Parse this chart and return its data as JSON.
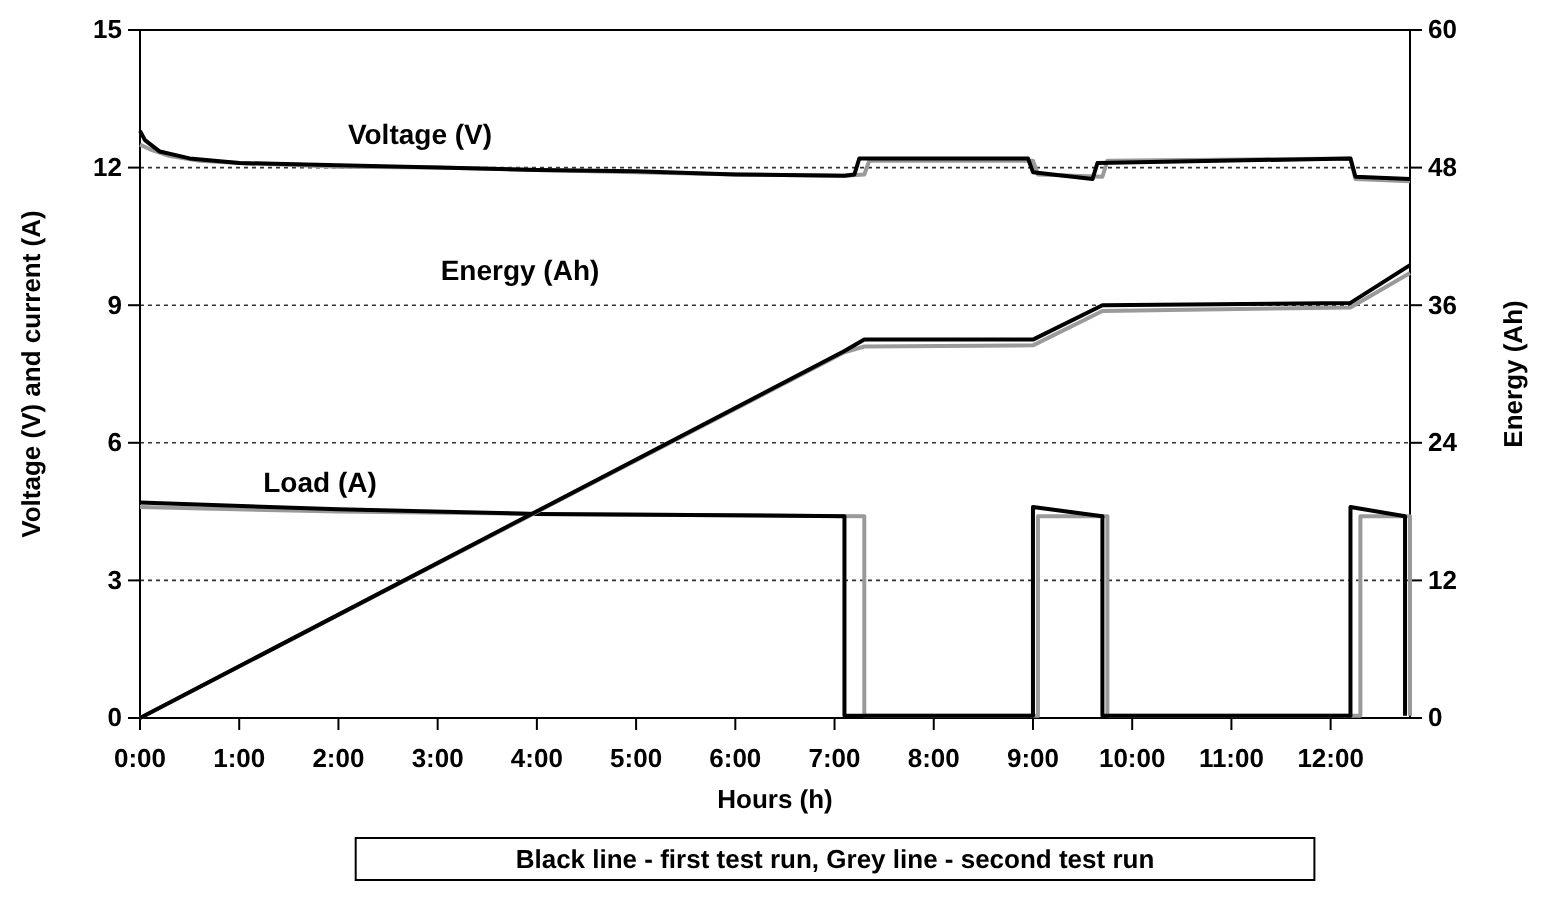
{
  "chart_data": {
    "type": "line",
    "xlabel": "Hours (h)",
    "ylabel": "Voltage (V) and current (A)",
    "y2label": "Energy (Ah)",
    "xlim": [
      0,
      12.8
    ],
    "xticks": [
      {
        "value": 0,
        "label": "0:00"
      },
      {
        "value": 1,
        "label": "1:00"
      },
      {
        "value": 2,
        "label": "2:00"
      },
      {
        "value": 3,
        "label": "3:00"
      },
      {
        "value": 4,
        "label": "4:00"
      },
      {
        "value": 5,
        "label": "5:00"
      },
      {
        "value": 6,
        "label": "6:00"
      },
      {
        "value": 7,
        "label": "7:00"
      },
      {
        "value": 8,
        "label": "8:00"
      },
      {
        "value": 9,
        "label": "9:00"
      },
      {
        "value": 10,
        "label": "10:00"
      },
      {
        "value": 11,
        "label": "11:00"
      },
      {
        "value": 12,
        "label": "12:00"
      }
    ],
    "ylim": [
      0,
      15
    ],
    "yticks": [
      0,
      3,
      6,
      9,
      12,
      15
    ],
    "y2lim": [
      0,
      60
    ],
    "y2ticks": [
      0,
      12,
      24,
      36,
      48,
      60
    ],
    "grid": "y",
    "line_style": "solid",
    "marker": "none",
    "series": [
      {
        "color": "#9a9a9a",
        "axis": "y",
        "x": [
          0,
          0.1,
          0.3,
          0.6,
          1,
          2,
          3,
          4,
          5,
          6,
          7.1,
          7.3,
          7.35,
          9.0,
          9.05,
          9.7,
          9.75,
          12.2,
          12.25,
          12.8
        ],
        "values": [
          12.5,
          12.4,
          12.25,
          12.15,
          12.1,
          12.02,
          12.0,
          11.95,
          11.9,
          11.85,
          11.82,
          11.85,
          12.15,
          12.15,
          11.85,
          11.8,
          12.15,
          12.2,
          11.75,
          11.7
        ]
      },
      {
        "color": "#000000",
        "axis": "y",
        "x": [
          0,
          0.05,
          0.2,
          0.5,
          1,
          2,
          3,
          4,
          5,
          6,
          7.1,
          7.2,
          7.25,
          8.95,
          9.0,
          9.6,
          9.65,
          12.2,
          12.25,
          12.8
        ],
        "values": [
          12.8,
          12.6,
          12.35,
          12.2,
          12.1,
          12.05,
          12.0,
          11.95,
          11.92,
          11.85,
          11.82,
          11.85,
          12.2,
          12.2,
          11.9,
          11.75,
          12.1,
          12.2,
          11.8,
          11.75
        ]
      },
      {
        "color": "#9a9a9a",
        "axis": "y",
        "x": [
          0,
          2,
          4,
          7.3,
          7.3,
          9.05,
          9.05,
          9.75,
          9.75,
          12.3,
          12.3,
          12.8,
          12.8
        ],
        "values": [
          4.6,
          4.5,
          4.45,
          4.4,
          0.05,
          0.05,
          4.4,
          4.4,
          0.05,
          0.05,
          4.4,
          4.4,
          0.05
        ]
      },
      {
        "color": "#000000",
        "axis": "y",
        "x": [
          0,
          2,
          4,
          7.1,
          7.1,
          9.0,
          9.0,
          9.7,
          9.7,
          12.2,
          12.2,
          12.75,
          12.75
        ],
        "values": [
          4.7,
          4.55,
          4.45,
          4.4,
          0.05,
          0.05,
          4.6,
          4.4,
          0.05,
          0.05,
          4.6,
          4.4,
          0.05
        ]
      },
      {
        "color": "#9a9a9a",
        "axis": "y2",
        "x": [
          0,
          7.1,
          7.3,
          9.0,
          9.7,
          12.2,
          12.8
        ],
        "values": [
          0,
          31.9,
          32.4,
          32.5,
          35.5,
          35.8,
          38.8
        ]
      },
      {
        "color": "#000000",
        "axis": "y2",
        "x": [
          0,
          7.1,
          7.3,
          9.0,
          9.7,
          12.2,
          12.8
        ],
        "values": [
          0,
          32.0,
          33.0,
          33.0,
          36.0,
          36.2,
          39.5
        ]
      }
    ],
    "annotations": [
      "Voltage (V)",
      "Energy (Ah)",
      "Load (A)",
      "Black line - first test run,  Grey line - second test run"
    ]
  }
}
